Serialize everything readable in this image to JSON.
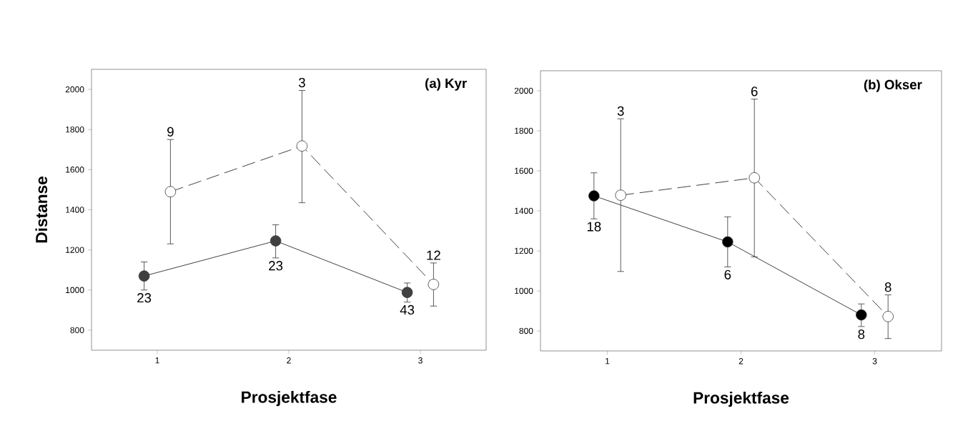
{
  "chart_data": [
    {
      "type": "line",
      "title": "(a) Kyr",
      "xlabel": "Prosjektfase",
      "ylabel": "Distanse",
      "xlim": [
        0.5,
        3.5
      ],
      "xticks": [
        1,
        2,
        3
      ],
      "ylim": [
        700,
        2100
      ],
      "yticks": [
        800,
        1000,
        1200,
        1400,
        1600,
        1800,
        2000
      ],
      "grid": false,
      "marker": "circle",
      "series": [
        {
          "color": "#404040",
          "line_style": "solid",
          "x": [
            0.9,
            1.9,
            2.9
          ],
          "values": [
            1070,
            1245,
            988
          ],
          "errors": [
            [
              1000,
              1140
            ],
            [
              1160,
              1325
            ],
            [
              940,
              1035
            ]
          ]
        },
        {
          "color": "#ffffff",
          "line_style": "dashed",
          "x": [
            1.1,
            2.1,
            3.1
          ],
          "values": [
            1490,
            1718,
            1028
          ],
          "errors": [
            [
              1230,
              1750
            ],
            [
              1435,
              1995
            ],
            [
              920,
              1135
            ]
          ]
        }
      ],
      "annotations": [
        {
          "text": "23",
          "x": 0.9,
          "y": 1000
        },
        {
          "text": "23",
          "x": 1.9,
          "y": 1160
        },
        {
          "text": "43",
          "x": 2.9,
          "y": 940
        },
        {
          "text": "9",
          "x": 1.1,
          "y": 1750
        },
        {
          "text": "3",
          "x": 2.1,
          "y": 1995
        },
        {
          "text": "12",
          "x": 3.1,
          "y": 1135
        }
      ]
    },
    {
      "type": "line",
      "title": "(b) Okser",
      "xlabel": "Prosjektfase",
      "xlim": [
        0.5,
        3.5
      ],
      "xticks": [
        1,
        2,
        3
      ],
      "ylim": [
        700,
        2100
      ],
      "yticks": [
        800,
        1000,
        1200,
        1400,
        1600,
        1800,
        2000
      ],
      "grid": false,
      "marker": "circle",
      "series": [
        {
          "color": "#000000",
          "line_style": "solid",
          "x": [
            0.9,
            1.9,
            2.9
          ],
          "values": [
            1475,
            1245,
            880
          ],
          "errors": [
            [
              1360,
              1590
            ],
            [
              1120,
              1370
            ],
            [
              822,
              935
            ]
          ]
        },
        {
          "color": "#ffffff",
          "line_style": "dashed",
          "x": [
            1.1,
            2.1,
            3.1
          ],
          "values": [
            1478,
            1565,
            872
          ],
          "errors": [
            [
              1097,
              1860
            ],
            [
              1170,
              1958
            ],
            [
              762,
              980
            ]
          ]
        }
      ],
      "annotations": [
        {
          "text": "18",
          "x": 0.9,
          "y": 1360
        },
        {
          "text": "6",
          "x": 1.9,
          "y": 1120
        },
        {
          "text": "8",
          "x": 2.9,
          "y": 822
        },
        {
          "text": "3",
          "x": 1.1,
          "y": 1860
        },
        {
          "text": "6",
          "x": 2.1,
          "y": 1958
        },
        {
          "text": "8",
          "x": 3.1,
          "y": 980
        }
      ]
    }
  ]
}
